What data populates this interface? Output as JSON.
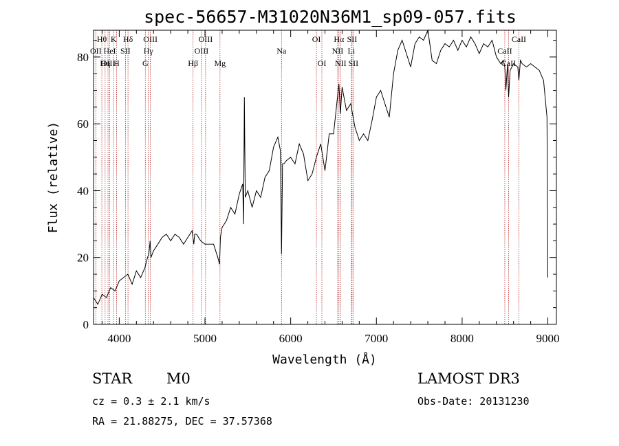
{
  "chart_data": {
    "type": "line",
    "title": "spec-56657-M31020N36M1_sp09-057.fits",
    "xlabel": "Wavelength (Å)",
    "ylabel": "Flux (relative)",
    "xlim": [
      3700,
      9100
    ],
    "ylim": [
      0,
      88
    ],
    "xticks": [
      4000,
      5000,
      6000,
      7000,
      8000,
      9000
    ],
    "yticks": [
      0,
      20,
      40,
      60,
      80
    ],
    "series": [
      {
        "name": "spectrum",
        "x": [
          3700,
          3750,
          3800,
          3850,
          3900,
          3950,
          4000,
          4050,
          4100,
          4150,
          4200,
          4250,
          4300,
          4330,
          4345,
          4360,
          4370,
          4400,
          4450,
          4500,
          4550,
          4600,
          4650,
          4700,
          4750,
          4800,
          4850,
          4870,
          4880,
          4900,
          4950,
          5000,
          5050,
          5100,
          5150,
          5170,
          5180,
          5200,
          5250,
          5300,
          5350,
          5400,
          5440,
          5450,
          5460,
          5470,
          5500,
          5550,
          5600,
          5650,
          5700,
          5750,
          5800,
          5850,
          5880,
          5893,
          5905,
          5920,
          5950,
          6000,
          6050,
          6100,
          6150,
          6200,
          6250,
          6300,
          6350,
          6400,
          6450,
          6500,
          6550,
          6563,
          6580,
          6600,
          6650,
          6700,
          6750,
          6800,
          6850,
          6900,
          6950,
          7000,
          7050,
          7100,
          7150,
          7200,
          7250,
          7300,
          7350,
          7400,
          7450,
          7500,
          7550,
          7600,
          7650,
          7700,
          7750,
          7800,
          7850,
          7900,
          7950,
          8000,
          8050,
          8100,
          8150,
          8200,
          8250,
          8300,
          8350,
          8400,
          8450,
          8480,
          8498,
          8510,
          8530,
          8542,
          8560,
          8600,
          8650,
          8662,
          8680,
          8700,
          8750,
          8800,
          8850,
          8900,
          8950,
          8990,
          9000
        ],
        "values": [
          8,
          6,
          9,
          8,
          11,
          10,
          13,
          14,
          15,
          12,
          16,
          14,
          17,
          20,
          21,
          25,
          20,
          22,
          24,
          26,
          27,
          25,
          27,
          26,
          24,
          26,
          28,
          24,
          27,
          27,
          25,
          24,
          24,
          24,
          20,
          18,
          26,
          29,
          31,
          35,
          33,
          39,
          42,
          30,
          68,
          38,
          40,
          35,
          40,
          38,
          44,
          46,
          53,
          56,
          52,
          21,
          48,
          48,
          49,
          50,
          48,
          54,
          51,
          43,
          45,
          50,
          54,
          46,
          57,
          57,
          69,
          72,
          63,
          71,
          64,
          66,
          59,
          55,
          57,
          55,
          61,
          68,
          70,
          66,
          62,
          75,
          82,
          85,
          81,
          77,
          84,
          86,
          85,
          88,
          79,
          78,
          82,
          84,
          83,
          85,
          82,
          85,
          83,
          86,
          84,
          81,
          84,
          83,
          85,
          80,
          78,
          79,
          77,
          70,
          78,
          68,
          76,
          78,
          77,
          73,
          79,
          78,
          77,
          78,
          77,
          76,
          73,
          62,
          14
        ]
      }
    ],
    "lines": [
      {
        "label": "Hθ",
        "wl": 3797,
        "row": 1
      },
      {
        "label": "OII",
        "wl": 3727,
        "row": 2
      },
      {
        "label": "OIII",
        "wl": 3869,
        "row": 3
      },
      {
        "label": "K",
        "wl": 3934,
        "row": 1
      },
      {
        "label": "H",
        "wl": 3968,
        "row": 3
      },
      {
        "label": "HeI",
        "wl": 3889,
        "row": 2
      },
      {
        "label": "Hη",
        "wl": 3835,
        "row": 3
      },
      {
        "label": "Hδ",
        "wl": 4102,
        "row": 1
      },
      {
        "label": "SII",
        "wl": 4072,
        "row": 2
      },
      {
        "label": "OIII",
        "wl": 4363,
        "row": 1
      },
      {
        "label": "Hγ",
        "wl": 4340,
        "row": 2
      },
      {
        "label": "G",
        "wl": 4304,
        "row": 3
      },
      {
        "label": "OIII",
        "wl": 5007,
        "row": 1
      },
      {
        "label": "OIII",
        "wl": 4959,
        "row": 2
      },
      {
        "label": "Hβ",
        "wl": 4861,
        "row": 3
      },
      {
        "label": "Mg",
        "wl": 5175,
        "row": 3
      },
      {
        "label": "Na",
        "wl": 5893,
        "row": 2
      },
      {
        "label": "OI",
        "wl": 6300,
        "row": 1
      },
      {
        "label": "OI",
        "wl": 6364,
        "row": 3
      },
      {
        "label": "Hα",
        "wl": 6563,
        "row": 1
      },
      {
        "label": "SII",
        "wl": 6716,
        "row": 1
      },
      {
        "label": "NII",
        "wl": 6548,
        "row": 2
      },
      {
        "label": "Li",
        "wl": 6708,
        "row": 2
      },
      {
        "label": "NII",
        "wl": 6583,
        "row": 3
      },
      {
        "label": "SII",
        "wl": 6731,
        "row": 3
      },
      {
        "label": "CaII",
        "wl": 8662,
        "row": 1
      },
      {
        "label": "CaII",
        "wl": 8498,
        "row": 2
      },
      {
        "label": "CaII",
        "wl": 8542,
        "row": 3
      }
    ]
  },
  "info": {
    "class": "STAR",
    "subclass": "M0",
    "survey": "LAMOST DR3",
    "cz": "cz = 0.3 ± 2.1 km/s",
    "obs_date": "Obs-Date: 20131230",
    "coords": "RA =  21.88275, DEC =  37.57368"
  },
  "colors": {
    "line_marker": "#b22222",
    "spectrum": "#000000",
    "axis": "#000000"
  }
}
